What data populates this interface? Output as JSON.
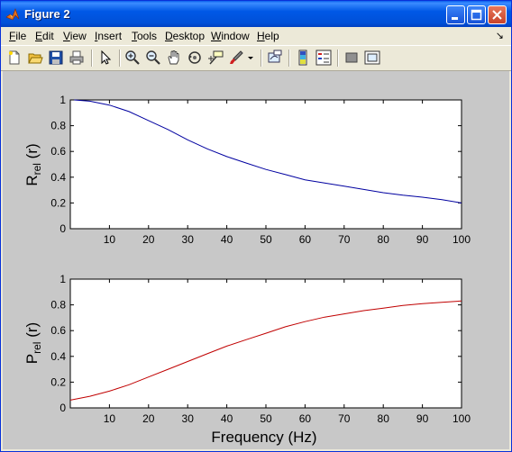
{
  "window": {
    "title": "Figure 2",
    "icon": "matlab-icon",
    "controls": [
      "minimize-icon",
      "maximize-icon",
      "close-icon"
    ]
  },
  "menu": {
    "items": [
      {
        "label": "File",
        "u": "F",
        "rest": "ile"
      },
      {
        "label": "Edit",
        "u": "E",
        "rest": "dit"
      },
      {
        "label": "View",
        "u": "V",
        "rest": "iew"
      },
      {
        "label": "Insert",
        "u": "I",
        "rest": "nsert"
      },
      {
        "label": "Tools",
        "u": "T",
        "rest": "ools"
      },
      {
        "label": "Desktop",
        "u": "D",
        "rest": "esktop"
      },
      {
        "label": "Window",
        "u": "W",
        "rest": "indow"
      },
      {
        "label": "Help",
        "u": "H",
        "rest": "elp"
      }
    ],
    "overflow_arrow": "↘"
  },
  "toolbar": {
    "tools": [
      "new-figure-icon",
      "open-file-icon",
      "save-icon",
      "print-icon",
      "edit-plot-arrow-icon",
      "zoom-in-icon",
      "zoom-out-icon",
      "pan-hand-icon",
      "rotate-3d-icon",
      "data-cursor-icon",
      "brush-icon",
      "link-plot-icon",
      "colorbar-icon",
      "legend-icon",
      "hide-plot-tools-icon",
      "show-plot-tools-icon"
    ]
  },
  "chart_data": [
    {
      "type": "line",
      "ylabel_main": "R",
      "ylabel_sub": "rel",
      "ylabel_rest": " (r)",
      "xlabel": "",
      "xlim": [
        0,
        100
      ],
      "ylim": [
        0,
        1
      ],
      "xticks": [
        10,
        20,
        30,
        40,
        50,
        60,
        70,
        80,
        90,
        100
      ],
      "yticks": [
        0,
        0.2,
        0.4,
        0.6,
        0.8,
        1
      ],
      "ytick_labels": [
        "0",
        "0.2",
        "0.4",
        "0.6",
        "0.8",
        "1"
      ],
      "color": "#0000A0",
      "x": [
        1,
        5,
        10,
        15,
        20,
        25,
        30,
        35,
        40,
        45,
        50,
        55,
        60,
        65,
        70,
        75,
        80,
        85,
        90,
        95,
        100
      ],
      "y": [
        1.0,
        0.99,
        0.96,
        0.91,
        0.84,
        0.77,
        0.69,
        0.62,
        0.56,
        0.51,
        0.46,
        0.42,
        0.38,
        0.355,
        0.33,
        0.305,
        0.28,
        0.26,
        0.245,
        0.225,
        0.2
      ]
    },
    {
      "type": "line",
      "ylabel_main": "P",
      "ylabel_sub": "rel",
      "ylabel_rest": " (r)",
      "xlabel": "Frequency (Hz)",
      "xlim": [
        0,
        100
      ],
      "ylim": [
        0,
        1
      ],
      "xticks": [
        10,
        20,
        30,
        40,
        50,
        60,
        70,
        80,
        90,
        100
      ],
      "yticks": [
        0,
        0.2,
        0.4,
        0.6,
        0.8,
        1
      ],
      "ytick_labels": [
        "0",
        "0.2",
        "0.4",
        "0.6",
        "0.8",
        "1"
      ],
      "color": "#C00000",
      "x": [
        0,
        5,
        10,
        15,
        20,
        25,
        30,
        35,
        40,
        45,
        50,
        55,
        60,
        65,
        70,
        75,
        80,
        85,
        90,
        95,
        100
      ],
      "y": [
        0.06,
        0.09,
        0.13,
        0.18,
        0.24,
        0.3,
        0.36,
        0.42,
        0.48,
        0.53,
        0.58,
        0.63,
        0.67,
        0.705,
        0.73,
        0.755,
        0.775,
        0.795,
        0.81,
        0.82,
        0.83
      ]
    }
  ]
}
